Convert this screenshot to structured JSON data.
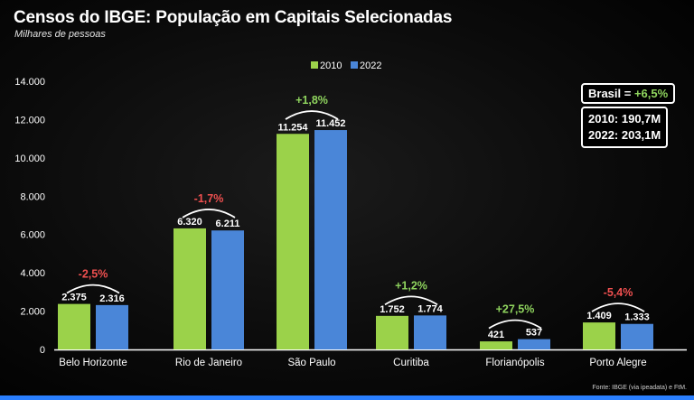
{
  "title": "Censos do IBGE: População em Capitais Selecionadas",
  "subtitle": "Milhares de pessoas",
  "source": "Fonte: IBGE (via ipeadata) e FtM.",
  "summary": {
    "brasil_label": "Brasil = ",
    "brasil_change": "+6,5%",
    "line_2010": "2010: 190,7M",
    "line_2022": "2022: 203,1M"
  },
  "colors": {
    "2010": "#9bd24a",
    "2022": "#4a86d8",
    "positive": "#8fd45e",
    "negative": "#f05050"
  },
  "chart_data": {
    "type": "bar",
    "title": "Censos do IBGE: População em Capitais Selecionadas",
    "ylabel": "Milhares de pessoas",
    "categories": [
      "Belo Horizonte",
      "Rio de Janeiro",
      "São Paulo",
      "Curitiba",
      "Florianópolis",
      "Porto Alegre"
    ],
    "series": [
      {
        "name": "2010",
        "values": [
          2375,
          6320,
          11254,
          1752,
          421,
          1409
        ],
        "labels": [
          "2.375",
          "6.320",
          "11.254",
          "1.752",
          "421",
          "1.409"
        ]
      },
      {
        "name": "2022",
        "values": [
          2316,
          6211,
          11452,
          1774,
          537,
          1333
        ],
        "labels": [
          "2.316",
          "6.211",
          "11.452",
          "1.774",
          "537",
          "1.333"
        ]
      }
    ],
    "changes": [
      "-2,5%",
      "-1,7%",
      "+1,8%",
      "+1,2%",
      "+27,5%",
      "-5,4%"
    ],
    "ylim": [
      0,
      14000
    ],
    "yticks": [
      0,
      2000,
      4000,
      6000,
      8000,
      10000,
      12000,
      14000
    ],
    "ytick_labels": [
      "0",
      "2.000",
      "4.000",
      "6.000",
      "8.000",
      "10.000",
      "12.000",
      "14.000"
    ],
    "legend": "top-center",
    "grid": false
  }
}
